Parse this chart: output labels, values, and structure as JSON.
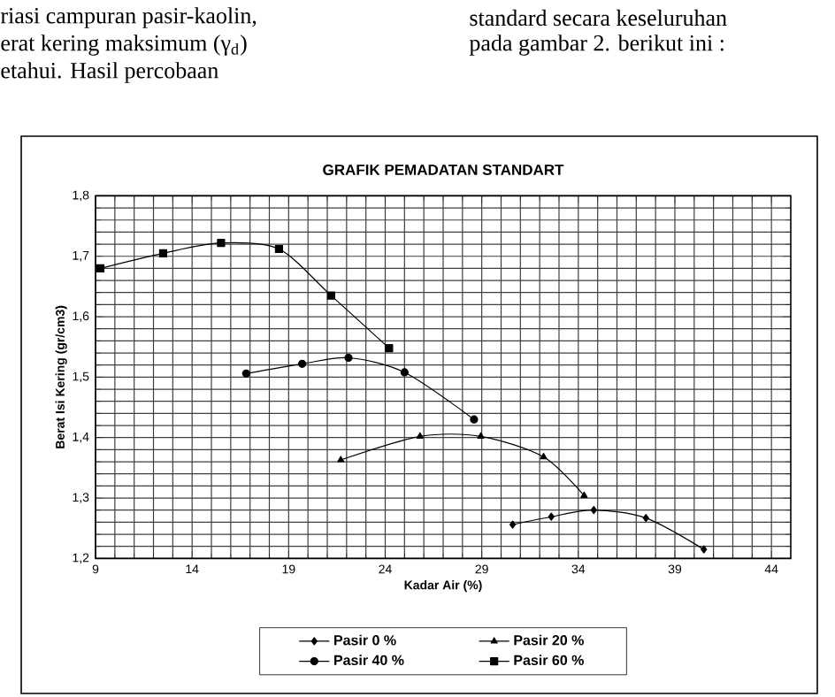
{
  "chart_data": {
    "type": "line",
    "title": "GRAFIK PEMADATAN STANDART",
    "xlabel": "Kadar Air (%)",
    "ylabel": "Berat Isi Kering (gr/cm3)",
    "annotations": [
      "riasi campuran pasir-kaolin,",
      "erat kering maksimum (γ$_{d}$)",
      "etahui. Hasil percobaan",
      "standard secara keseluruhan",
      "pada gambar 2. berikut ini :"
    ],
    "xlim": [
      9,
      45
    ],
    "ylim": [
      1.2,
      1.8
    ],
    "xticks": [
      9,
      14,
      19,
      24,
      29,
      34,
      39,
      44
    ],
    "yticks": [
      {
        "value": 1.2,
        "label": "1,2"
      },
      {
        "value": 1.3,
        "label": "1,3"
      },
      {
        "value": 1.4,
        "label": "1,4"
      },
      {
        "value": 1.5,
        "label": "1,5"
      },
      {
        "value": 1.6,
        "label": "1,6"
      },
      {
        "value": 1.7,
        "label": "1,7"
      },
      {
        "value": 1.8,
        "label": "1,8"
      }
    ],
    "grid": true,
    "legend": "bottom",
    "series": [
      {
        "name": "Pasir 0 %",
        "color": "#000000",
        "marker": "diamond",
        "x": [
          30.6,
          32.6,
          34.8,
          37.5,
          40.5
        ],
        "values": [
          1.256,
          1.269,
          1.28,
          1.267,
          1.215
        ]
      },
      {
        "name": "Pasir 20 %",
        "color": "#000000",
        "marker": "triangle",
        "x": [
          21.7,
          25.8,
          28.95,
          32.2,
          34.3
        ],
        "values": [
          1.363,
          1.402,
          1.402,
          1.368,
          1.304
        ]
      },
      {
        "name": "Pasir 40 %",
        "color": "#000000",
        "marker": "circle",
        "x": [
          16.8,
          19.7,
          22.1,
          25.0,
          28.6
        ],
        "values": [
          1.506,
          1.522,
          1.532,
          1.508,
          1.43
        ]
      },
      {
        "name": "Pasir 60 %",
        "color": "#000000",
        "marker": "square",
        "x": [
          9.25,
          12.5,
          15.5,
          18.5,
          21.2,
          24.2
        ],
        "values": [
          1.68,
          1.705,
          1.722,
          1.712,
          1.635,
          1.548
        ]
      }
    ]
  }
}
